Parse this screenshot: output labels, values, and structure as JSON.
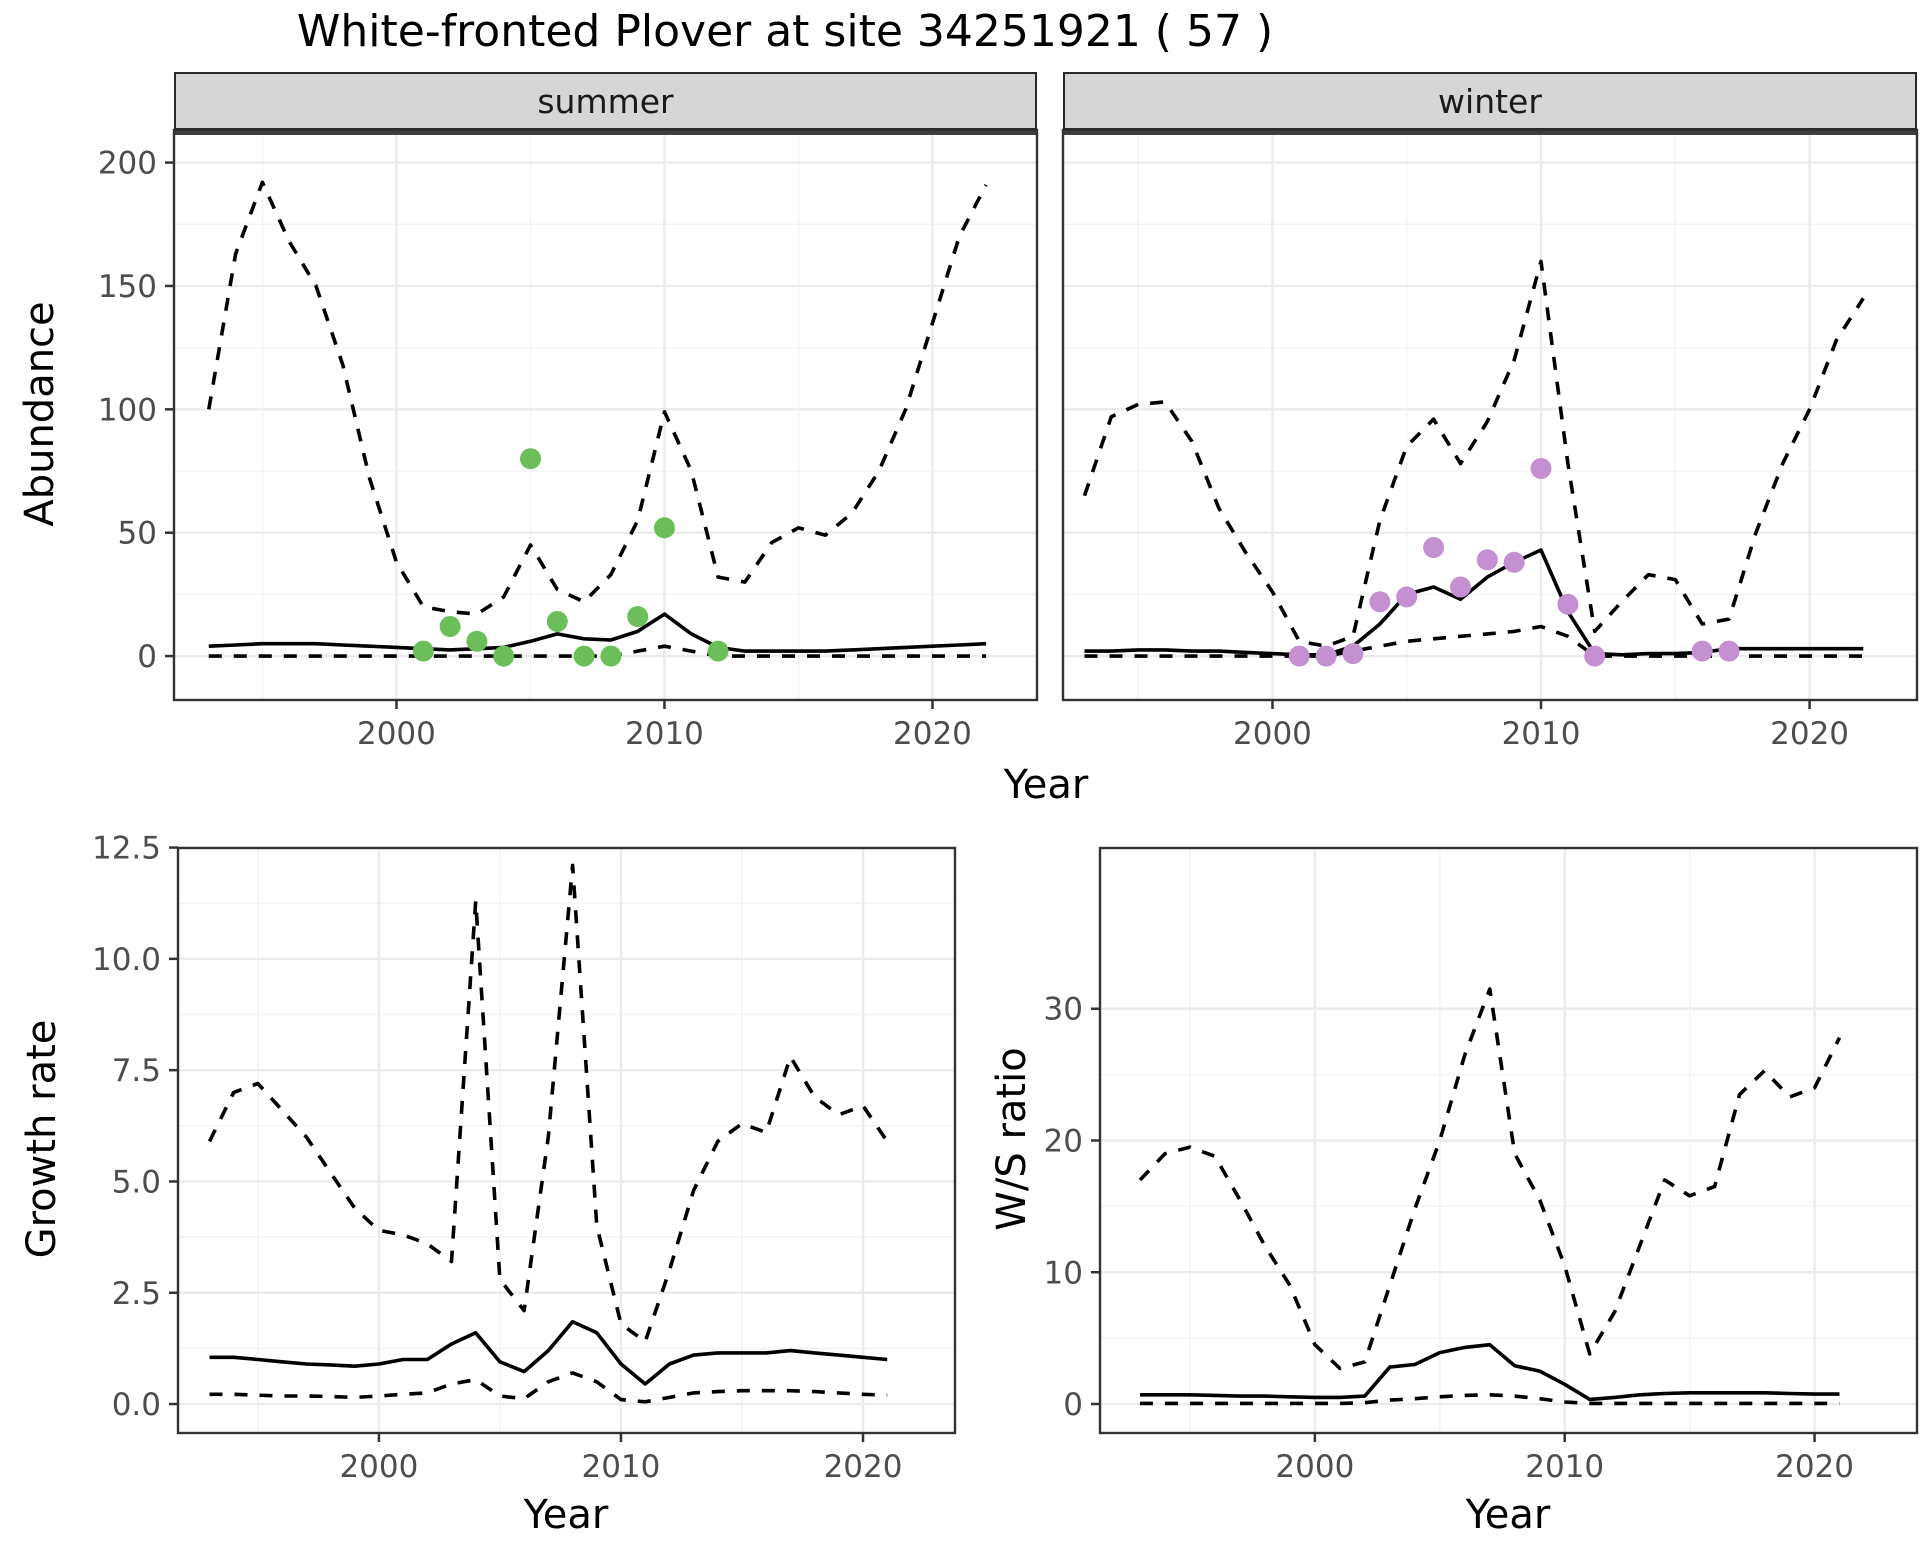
{
  "title": "White-fronted Plover at site 34251921 ( 57 )",
  "facets": {
    "summer_label": "summer",
    "winter_label": "winter"
  },
  "axis_titles": {
    "abundance": "Abundance",
    "year_top": "Year",
    "growth_rate": "Growth rate",
    "ws_ratio": "W/S ratio",
    "year_bottom_left": "Year",
    "year_bottom_right": "Year"
  },
  "colors": {
    "summer_points": "#6cbe5b",
    "winter_points": "#c490d1",
    "line": "#000000",
    "grid_major": "#ebebeb",
    "grid_minor": "#f4f4f4",
    "strip_bg": "#d6d6d6",
    "panel_border": "#333333",
    "tick_text": "#4d4d4d"
  },
  "chart_data": [
    {
      "id": "abundance-summer",
      "type": "line",
      "facet": "summer",
      "title": "",
      "xlabel": "Year",
      "ylabel": "Abundance",
      "legend": "none",
      "grid": true,
      "xticks": [
        2000,
        2010,
        2020
      ],
      "xticks_minor": [
        1995,
        2005,
        2015
      ],
      "yticks": [
        0,
        50,
        100,
        150,
        200
      ],
      "ytick_labels": [
        "0",
        "50",
        "100",
        "150",
        "200"
      ],
      "yticks_minor": [
        25,
        75,
        125,
        175
      ],
      "x": [
        1993,
        1994,
        1995,
        1996,
        1997,
        1998,
        1999,
        2000,
        2001,
        2002,
        2003,
        2004,
        2005,
        2006,
        2007,
        2008,
        2009,
        2010,
        2011,
        2012,
        2013,
        2014,
        2015,
        2016,
        2017,
        2018,
        2019,
        2020,
        2021,
        2022
      ],
      "series": [
        {
          "name": "upper_ci",
          "style": "dashed",
          "values": [
            100,
            163,
            192,
            168,
            150,
            118,
            72,
            38,
            20,
            18,
            17,
            24,
            45,
            27,
            22,
            33,
            55,
            99,
            75,
            32,
            30,
            46,
            52,
            49,
            58,
            75,
            100,
            135,
            170,
            191
          ]
        },
        {
          "name": "median",
          "style": "solid",
          "values": [
            4,
            4.5,
            5,
            5,
            5,
            4.5,
            4,
            3.5,
            3,
            2.5,
            3,
            3.5,
            6,
            9,
            7,
            6.5,
            10,
            17,
            9,
            3.5,
            2,
            2,
            2,
            2,
            2.5,
            3,
            3.5,
            4,
            4.5,
            5
          ]
        },
        {
          "name": "lower_ci",
          "style": "dashed",
          "values": [
            0,
            0,
            0,
            0,
            0,
            0,
            0,
            0,
            0,
            0,
            0,
            0,
            0,
            0,
            0,
            0,
            2,
            4,
            2,
            0,
            0,
            0,
            0,
            0,
            0,
            0,
            0,
            0,
            0,
            0
          ]
        }
      ],
      "points": {
        "name": "summer_observations",
        "color_key": "summer_points",
        "x": [
          2001,
          2002,
          2003,
          2004,
          2005,
          2006,
          2007,
          2008,
          2009,
          2010,
          2012
        ],
        "y": [
          2,
          12,
          6,
          0,
          80,
          14,
          0,
          0,
          16,
          52,
          2
        ]
      }
    },
    {
      "id": "abundance-winter",
      "type": "line",
      "facet": "winter",
      "title": "",
      "xlabel": "Year",
      "ylabel": "Abundance",
      "legend": "none",
      "grid": true,
      "xticks": [
        2000,
        2010,
        2020
      ],
      "xticks_minor": [
        1995,
        2005,
        2015
      ],
      "yticks": [
        0,
        50,
        100,
        150,
        200
      ],
      "ytick_labels": [
        "0",
        "50",
        "100",
        "150",
        "200"
      ],
      "yticks_minor": [
        25,
        75,
        125,
        175
      ],
      "x": [
        1993,
        1994,
        1995,
        1996,
        1997,
        1998,
        1999,
        2000,
        2001,
        2002,
        2003,
        2004,
        2005,
        2006,
        2007,
        2008,
        2009,
        2010,
        2011,
        2012,
        2013,
        2014,
        2015,
        2016,
        2017,
        2018,
        2019,
        2020,
        2021,
        2022
      ],
      "series": [
        {
          "name": "upper_ci",
          "style": "dashed",
          "values": [
            65,
            97,
            102,
            103,
            87,
            60,
            42,
            26,
            6,
            4,
            8,
            55,
            85,
            96,
            78,
            95,
            120,
            160,
            78,
            10,
            22,
            33,
            31,
            13,
            15,
            50,
            78,
            100,
            128,
            145
          ]
        },
        {
          "name": "median",
          "style": "solid",
          "values": [
            2,
            2,
            2.5,
            2.5,
            2,
            2,
            1.5,
            1,
            0.5,
            0.5,
            4,
            13,
            25,
            28,
            23,
            32,
            38,
            43,
            18,
            1,
            0.5,
            1,
            1,
            1.5,
            3,
            3,
            3,
            3,
            3,
            3
          ]
        },
        {
          "name": "lower_ci",
          "style": "dashed",
          "values": [
            0,
            0,
            0,
            0,
            0,
            0,
            0,
            0,
            0,
            0,
            2,
            4,
            6,
            7,
            8,
            9,
            10,
            12,
            8,
            0,
            0,
            0,
            0,
            0,
            0,
            0,
            0,
            0,
            0,
            0
          ]
        }
      ],
      "points": {
        "name": "winter_observations",
        "color_key": "winter_points",
        "x": [
          2001,
          2002,
          2003,
          2004,
          2005,
          2006,
          2007,
          2008,
          2009,
          2010,
          2011,
          2012,
          2016,
          2017
        ],
        "y": [
          0,
          0,
          1,
          22,
          24,
          44,
          28,
          39,
          38,
          76,
          21,
          0,
          2,
          2
        ]
      }
    },
    {
      "id": "growth-rate",
      "type": "line",
      "facet": "",
      "title": "",
      "xlabel": "Year",
      "ylabel": "Growth rate",
      "legend": "none",
      "grid": true,
      "xticks": [
        2000,
        2010,
        2020
      ],
      "xticks_minor": [
        1995,
        2005,
        2015
      ],
      "yticks": [
        0,
        2.5,
        5,
        7.5,
        10,
        12.5
      ],
      "ytick_labels": [
        "0.0",
        "2.5",
        "5.0",
        "7.5",
        "10.0",
        "12.5"
      ],
      "yticks_minor": [
        1.25,
        3.75,
        6.25,
        8.75,
        11.25
      ],
      "x": [
        1993,
        1994,
        1995,
        1996,
        1997,
        1998,
        1999,
        2000,
        2001,
        2002,
        2003,
        2004,
        2005,
        2006,
        2007,
        2008,
        2009,
        2010,
        2011,
        2012,
        2013,
        2014,
        2015,
        2016,
        2017,
        2018,
        2019,
        2020,
        2021
      ],
      "series": [
        {
          "name": "upper_ci",
          "style": "dashed",
          "values": [
            5.9,
            7.0,
            7.2,
            6.6,
            6.0,
            5.2,
            4.4,
            3.9,
            3.8,
            3.6,
            3.2,
            11.3,
            2.8,
            2.1,
            6.0,
            12.1,
            4.0,
            1.8,
            1.4,
            3.0,
            4.8,
            5.9,
            6.3,
            6.1,
            7.8,
            6.9,
            6.5,
            6.7,
            5.9
          ]
        },
        {
          "name": "median",
          "style": "solid",
          "values": [
            1.05,
            1.05,
            1.0,
            0.95,
            0.9,
            0.88,
            0.85,
            0.9,
            1.0,
            1.0,
            1.35,
            1.6,
            0.95,
            0.73,
            1.2,
            1.85,
            1.6,
            0.9,
            0.45,
            0.9,
            1.1,
            1.15,
            1.15,
            1.15,
            1.2,
            1.15,
            1.1,
            1.05,
            1.0
          ]
        },
        {
          "name": "lower_ci",
          "style": "dashed",
          "values": [
            0.22,
            0.22,
            0.2,
            0.18,
            0.18,
            0.17,
            0.15,
            0.18,
            0.22,
            0.25,
            0.45,
            0.55,
            0.18,
            0.12,
            0.5,
            0.7,
            0.5,
            0.1,
            0.05,
            0.15,
            0.25,
            0.28,
            0.3,
            0.3,
            0.3,
            0.28,
            0.25,
            0.22,
            0.2
          ]
        }
      ],
      "points": null
    },
    {
      "id": "ws-ratio",
      "type": "line",
      "facet": "",
      "title": "",
      "xlabel": "Year",
      "ylabel": "W/S ratio",
      "legend": "none",
      "grid": true,
      "xticks": [
        2000,
        2010,
        2020
      ],
      "xticks_minor": [
        1995,
        2005,
        2015
      ],
      "yticks": [
        0,
        10,
        20,
        30
      ],
      "ytick_labels": [
        "0",
        "10",
        "20",
        "30"
      ],
      "yticks_minor": [
        5,
        15,
        25
      ],
      "x": [
        1993,
        1994,
        1995,
        1996,
        1997,
        1998,
        1999,
        2000,
        2001,
        2002,
        2003,
        2004,
        2005,
        2006,
        2007,
        2008,
        2009,
        2010,
        2011,
        2012,
        2013,
        2014,
        2015,
        2016,
        2017,
        2018,
        2019,
        2020,
        2021
      ],
      "series": [
        {
          "name": "upper_ci",
          "style": "dashed",
          "values": [
            17,
            19,
            19.5,
            18.8,
            15.5,
            12,
            9,
            4.5,
            2.7,
            3.2,
            9,
            14.8,
            20,
            26.5,
            31.5,
            19,
            15.5,
            10.5,
            3.8,
            7,
            12,
            17,
            15.8,
            16.5,
            23.5,
            25.3,
            23.3,
            24,
            27.8
          ]
        },
        {
          "name": "median",
          "style": "solid",
          "values": [
            0.7,
            0.7,
            0.7,
            0.65,
            0.6,
            0.6,
            0.55,
            0.5,
            0.5,
            0.6,
            2.8,
            3.0,
            3.9,
            4.3,
            4.5,
            2.9,
            2.5,
            1.5,
            0.35,
            0.5,
            0.7,
            0.8,
            0.85,
            0.85,
            0.85,
            0.85,
            0.8,
            0.75,
            0.75
          ]
        },
        {
          "name": "lower_ci",
          "style": "dashed",
          "values": [
            0.05,
            0.05,
            0.05,
            0.05,
            0.05,
            0.05,
            0.05,
            0.05,
            0.05,
            0.1,
            0.3,
            0.4,
            0.55,
            0.65,
            0.7,
            0.6,
            0.4,
            0.15,
            0.05,
            0.05,
            0.05,
            0.05,
            0.05,
            0.05,
            0.05,
            0.05,
            0.05,
            0.05,
            0.05
          ]
        }
      ],
      "points": null
    }
  ]
}
